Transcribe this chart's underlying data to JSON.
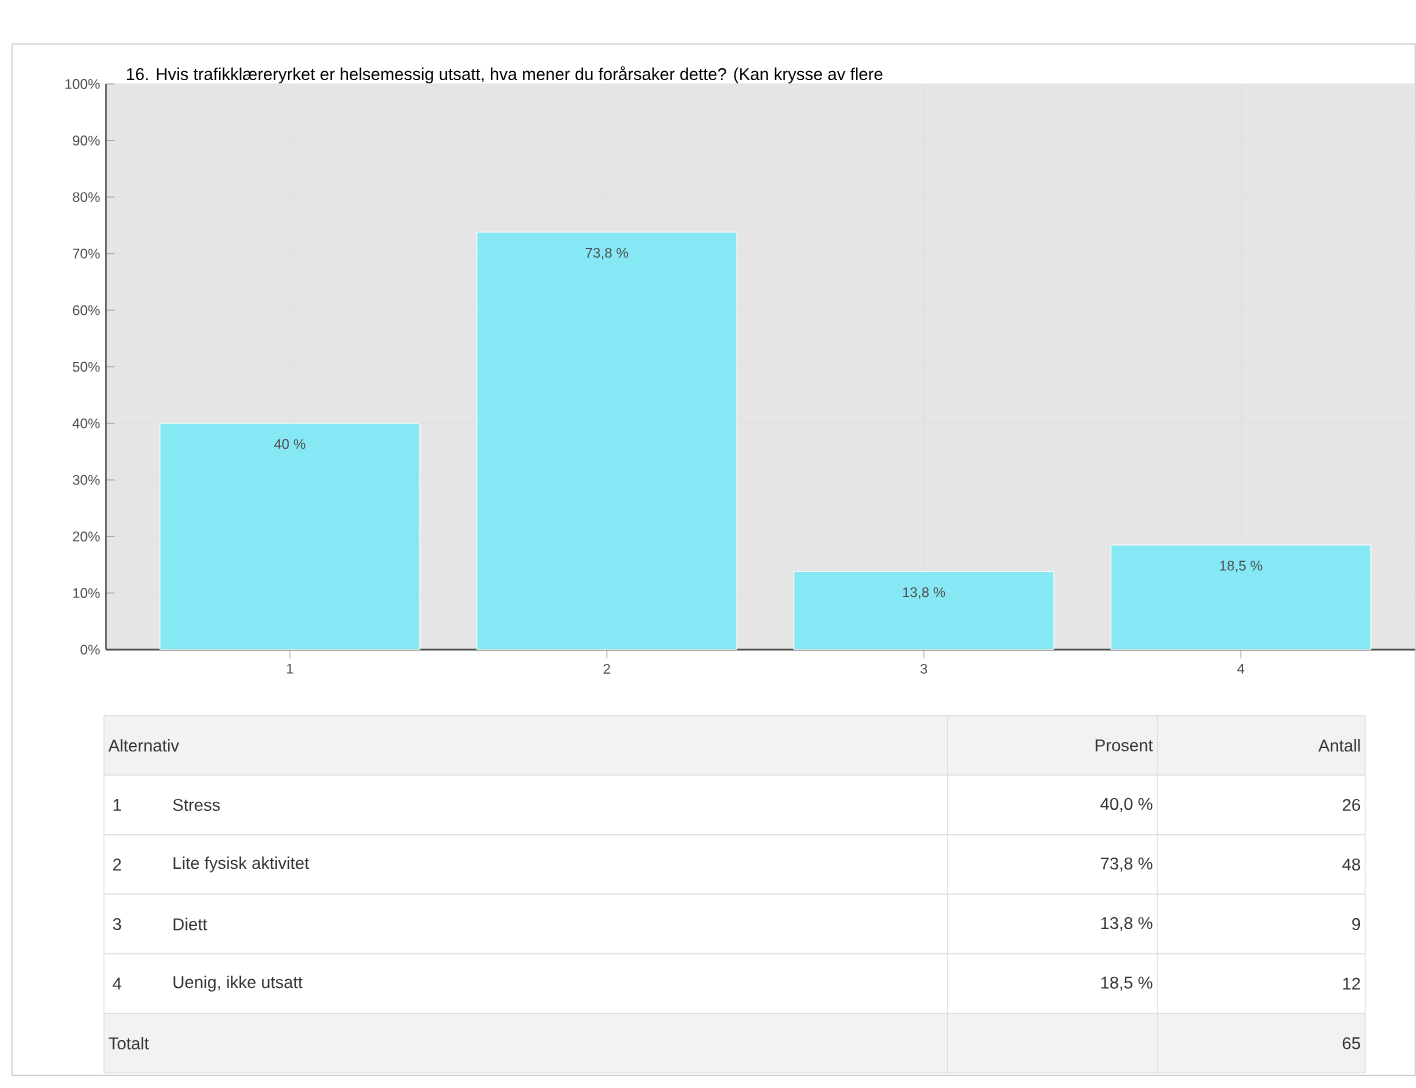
{
  "chart_data": {
    "type": "bar",
    "title": "16. Hvis trafikklæreryrket er helsemessig utsatt, hva mener du forårsaker dette? (Kan krysse av flere",
    "categories": [
      "1",
      "2",
      "3",
      "4"
    ],
    "values": [
      40,
      73.8,
      13.8,
      18.5
    ],
    "value_labels": [
      "40 %",
      "73,8 %",
      "13,8 %",
      "18,5 %"
    ],
    "color": "#86e8f4",
    "ylim": [
      0,
      100
    ],
    "yticks": [
      {
        "value": 0,
        "label": "0%"
      },
      {
        "value": 10,
        "label": "10%"
      },
      {
        "value": 20,
        "label": "20%"
      },
      {
        "value": 30,
        "label": "30%"
      },
      {
        "value": 40,
        "label": "40%"
      },
      {
        "value": 50,
        "label": "50%"
      },
      {
        "value": 60,
        "label": "60%"
      },
      {
        "value": 70,
        "label": "70%"
      },
      {
        "value": 80,
        "label": "80%"
      },
      {
        "value": 90,
        "label": "90%"
      },
      {
        "value": 100,
        "label": "100%"
      }
    ],
    "grid": true,
    "annotations": [
      "Alternativ",
      "Prosent",
      "Antall",
      "1",
      "Stress",
      "40,0 %",
      "26",
      "2",
      "Lite fysisk aktivitet",
      "73,8 %",
      "48",
      "3",
      "Diett",
      "13,8 %",
      "9",
      "4",
      "Uenig, ikke utsatt",
      "18,5 %",
      "12",
      "Totalt",
      "65"
    ]
  }
}
